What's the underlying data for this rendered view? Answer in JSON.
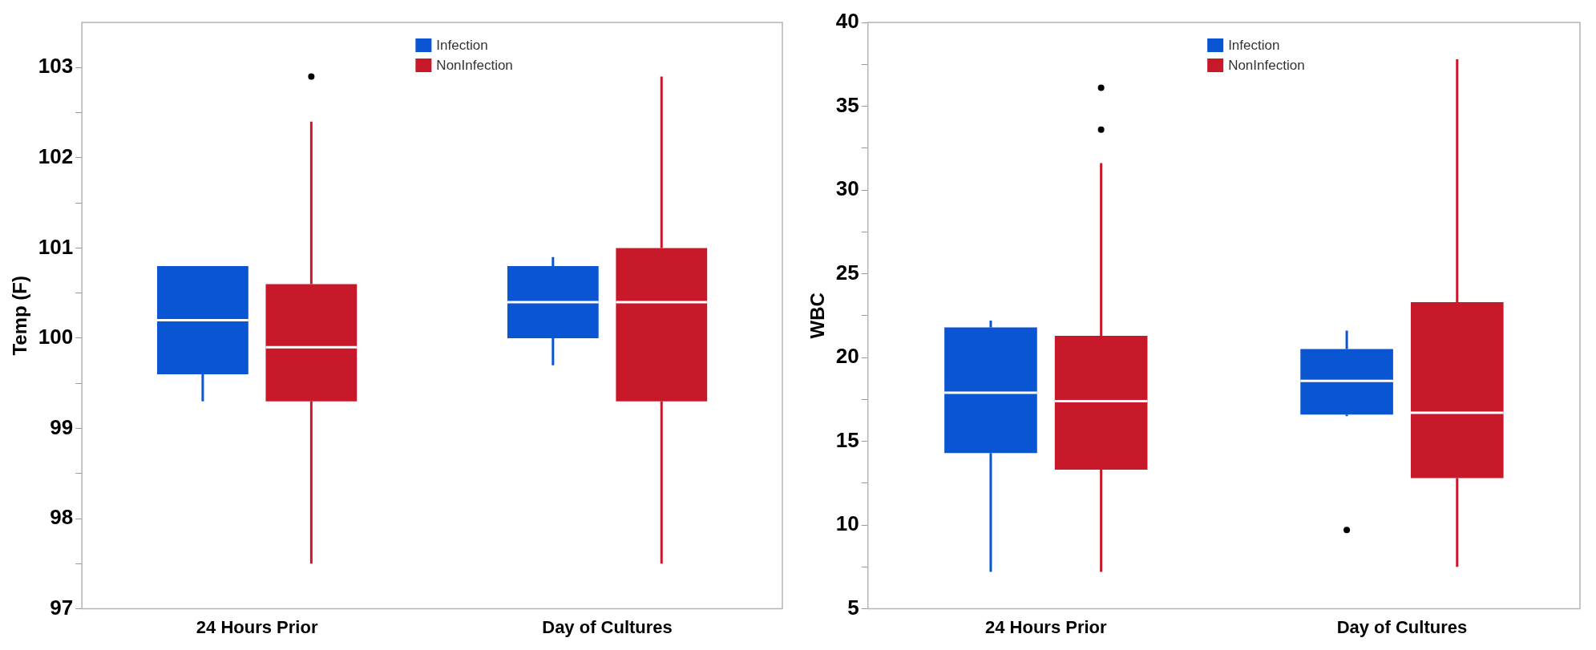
{
  "chart_data": [
    {
      "type": "box",
      "ylabel": "Temp (F)",
      "categories": [
        "24 Hours Prior",
        "Day of Cultures"
      ],
      "ylim": [
        97,
        103.5
      ],
      "yticks": [
        97,
        {
          "value": 97.5,
          "label": null
        },
        98,
        {
          "value": 98.5,
          "label": null
        },
        99,
        {
          "value": 99.5,
          "label": null
        },
        100,
        {
          "value": 100.5,
          "label": null
        },
        101,
        {
          "value": 101.5,
          "label": null
        },
        102,
        {
          "value": 102.5,
          "label": null
        },
        103
      ],
      "legend": "top",
      "series": [
        {
          "name": "Infection",
          "color": "#0a55d2",
          "boxes": [
            {
              "low": 99.3,
              "q1": 99.6,
              "median": 100.2,
              "q3": 100.8,
              "high": 100.8
            },
            {
              "low": 99.7,
              "q1": 100.0,
              "median": 100.4,
              "q3": 100.8,
              "high": 100.9
            }
          ]
        },
        {
          "name": "NonInfection",
          "color": "#c8192a",
          "boxes": [
            {
              "low": 97.5,
              "q1": 99.3,
              "median": 99.9,
              "q3": 100.6,
              "high": 102.4,
              "outliers": [
                102.9
              ]
            },
            {
              "low": 97.5,
              "q1": 99.3,
              "median": 100.4,
              "q3": 101.0,
              "high": 102.9
            }
          ]
        }
      ]
    },
    {
      "type": "box",
      "ylabel": "WBC",
      "categories": [
        "24 Hours Prior",
        "Day of Cultures"
      ],
      "ylim": [
        5,
        40
      ],
      "yticks": [
        5,
        {
          "value": 7.5,
          "label": null
        },
        10,
        {
          "value": 12.5,
          "label": null
        },
        15,
        {
          "value": 17.5,
          "label": null
        },
        20,
        {
          "value": 22.5,
          "label": null
        },
        25,
        {
          "value": 27.5,
          "label": null
        },
        30,
        {
          "value": 32.5,
          "label": null
        },
        35,
        {
          "value": 37.5,
          "label": null
        },
        40
      ],
      "legend": "top",
      "series": [
        {
          "name": "Infection",
          "color": "#0a55d2",
          "boxes": [
            {
              "low": 7.2,
              "q1": 14.3,
              "median": 17.9,
              "q3": 21.8,
              "high": 22.2
            },
            {
              "low": 16.5,
              "q1": 16.6,
              "median": 18.6,
              "q3": 20.5,
              "high": 21.6,
              "outliers": [
                9.7
              ]
            }
          ]
        },
        {
          "name": "NonInfection",
          "color": "#c8192a",
          "boxes": [
            {
              "low": 7.2,
              "q1": 13.3,
              "median": 17.4,
              "q3": 21.3,
              "high": 31.6,
              "outliers": [
                33.6,
                36.1
              ]
            },
            {
              "low": 7.5,
              "q1": 12.8,
              "median": 16.7,
              "q3": 23.3,
              "high": 37.8
            }
          ]
        }
      ]
    }
  ]
}
